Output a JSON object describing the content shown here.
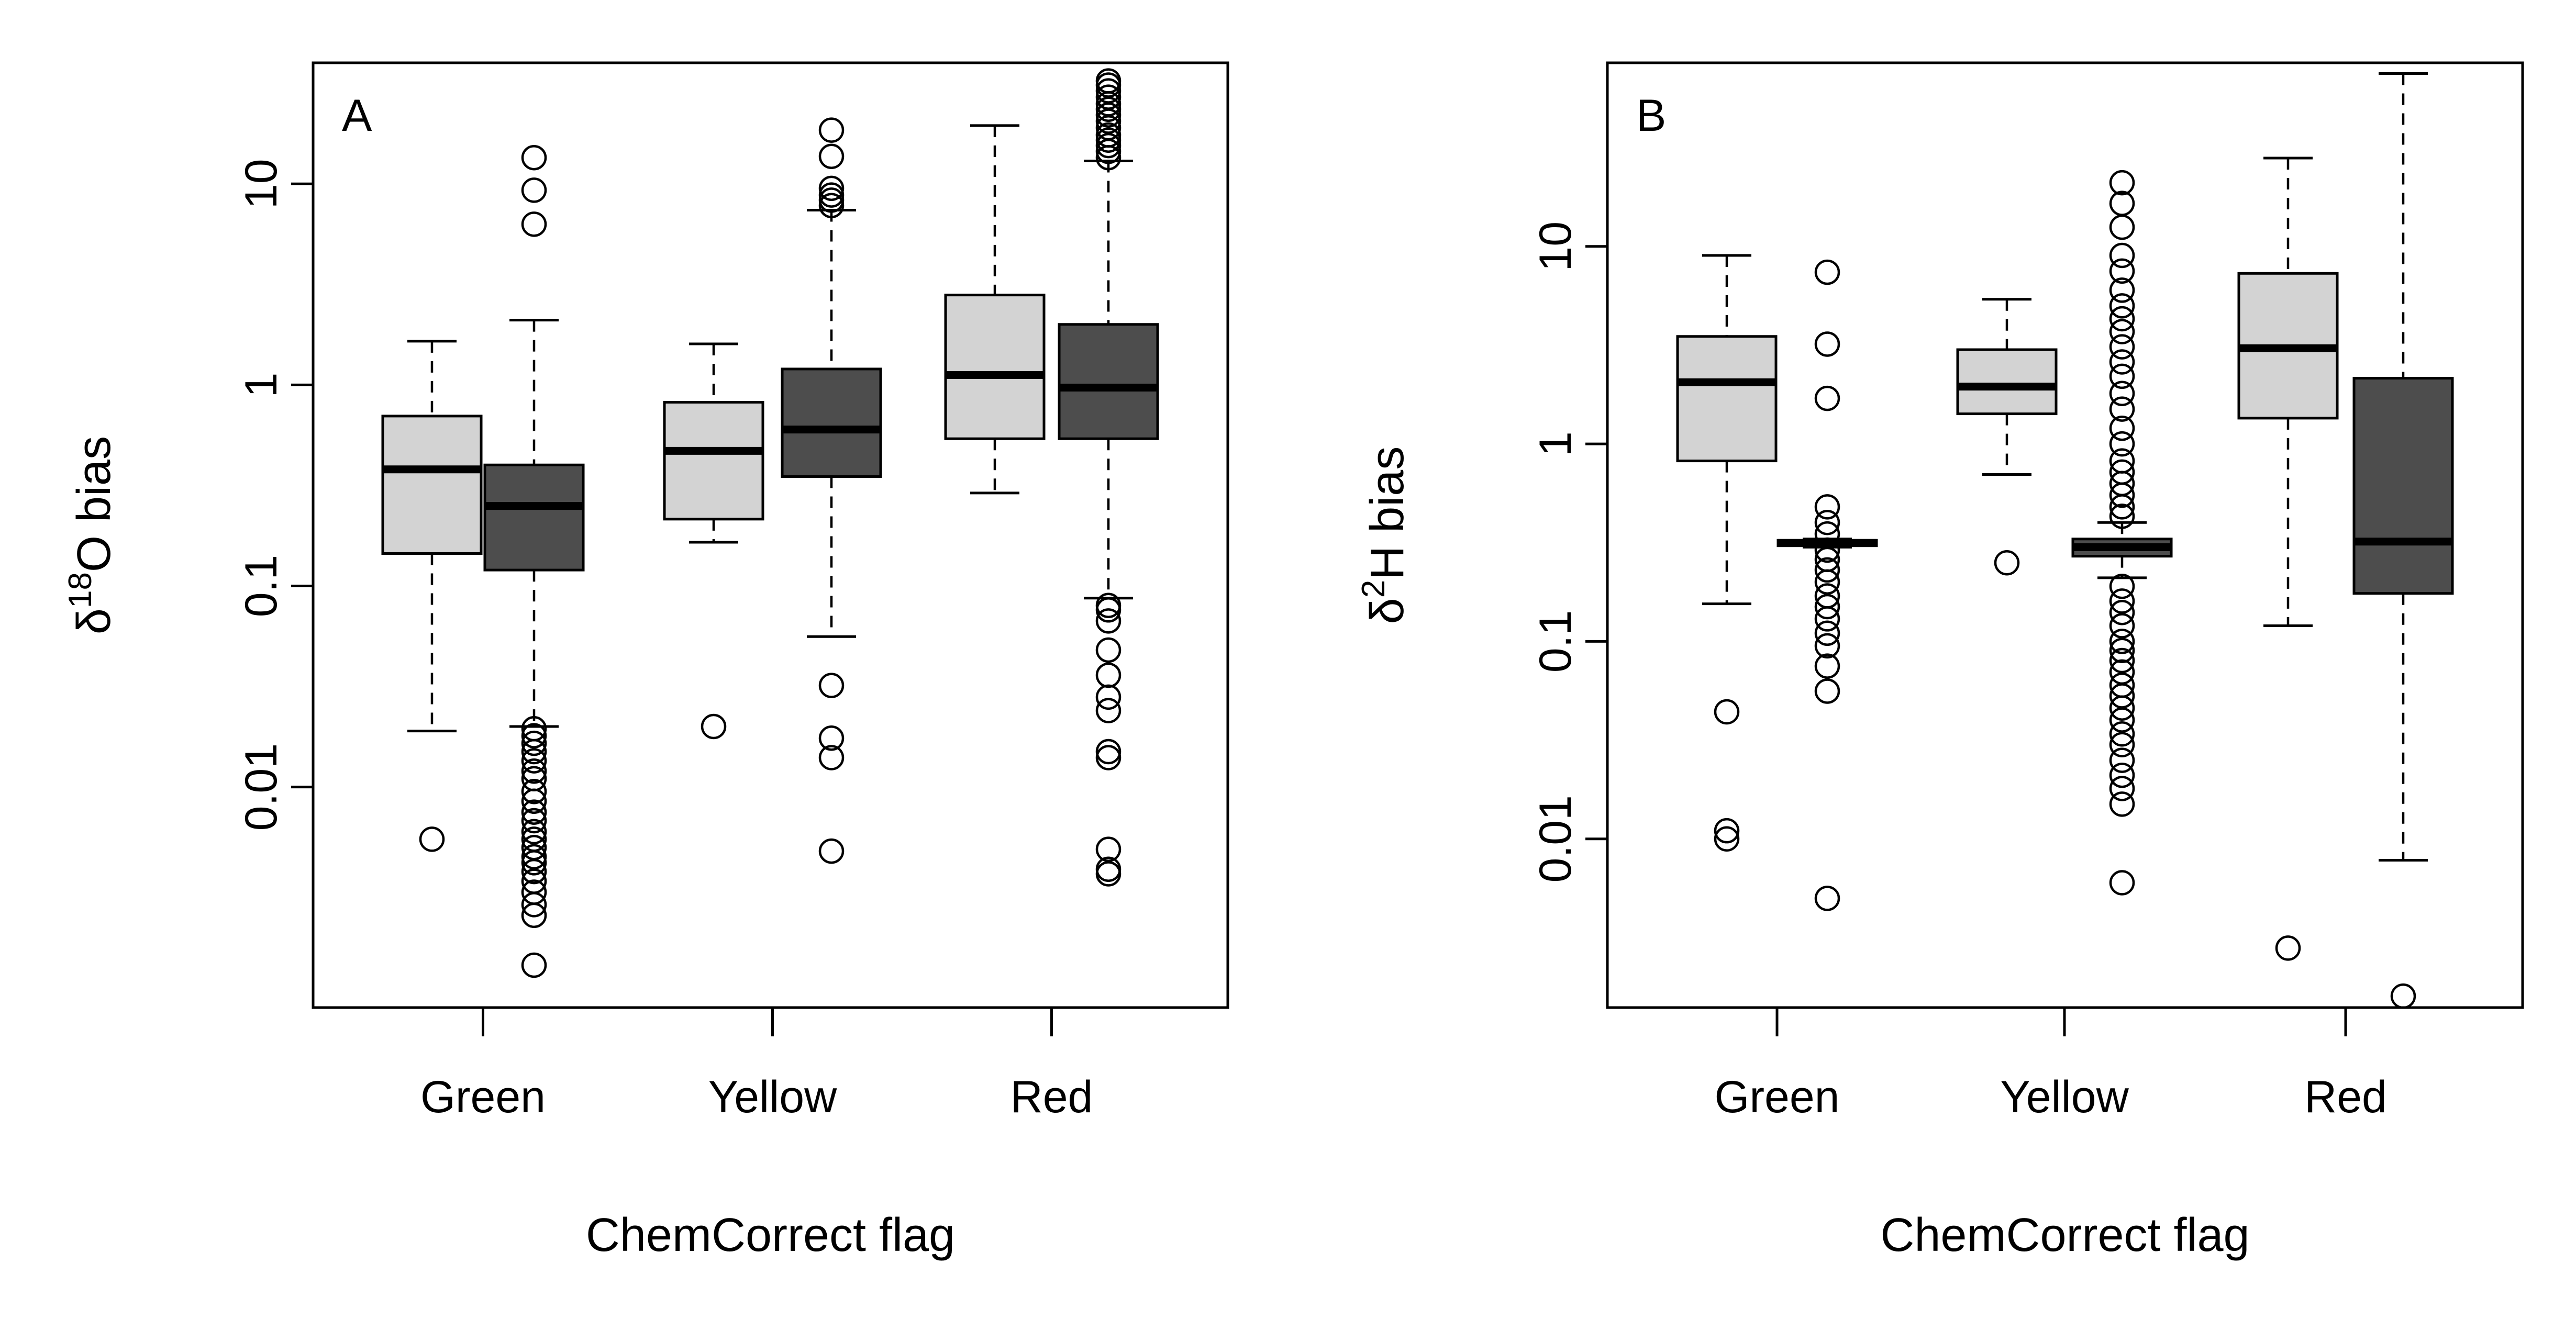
{
  "figure": {
    "colors": {
      "light_box": "#d3d3d3",
      "dark_box": "#4d4d4d",
      "ink": "#000000"
    }
  },
  "chart_data": [
    {
      "type": "boxplot",
      "panel_letter": "A",
      "xlabel": "ChemCorrect flag",
      "ylabel": {
        "greek": "δ",
        "sup": "18",
        "rest": "O bias"
      },
      "yscale": "log",
      "ylim": [
        0.0008,
        40
      ],
      "yticks": [
        0.01,
        0.1,
        1,
        10
      ],
      "ytick_labels": [
        "0.01",
        "0.1",
        "1",
        "10"
      ],
      "categories": [
        "Green",
        "Yellow",
        "Red"
      ],
      "series_colors": [
        "#d3d3d3",
        "#4d4d4d"
      ],
      "groups": [
        [
          {
            "lw": 0.019,
            "q1": 0.145,
            "med": 0.38,
            "q3": 0.7,
            "uw": 1.65,
            "outliers": [
              0.0055
            ]
          },
          {
            "lw": 0.02,
            "q1": 0.12,
            "med": 0.25,
            "q3": 0.4,
            "uw": 2.1,
            "outliers": [
              0.0013,
              0.0023,
              0.0026,
              0.003,
              0.0034,
              0.0038,
              0.0042,
              0.0045,
              0.005,
              0.0055,
              0.006,
              0.0068,
              0.0075,
              0.0085,
              0.0095,
              0.011,
              0.012,
              0.0135,
              0.015,
              0.0165,
              0.018,
              0.0195,
              6.3,
              9.3,
              13.5
            ]
          }
        ],
        [
          {
            "lw": 0.165,
            "q1": 0.215,
            "med": 0.47,
            "q3": 0.82,
            "uw": 1.6,
            "outliers": [
              0.02
            ]
          },
          {
            "lw": 0.056,
            "q1": 0.35,
            "med": 0.6,
            "q3": 1.2,
            "uw": 7.4,
            "outliers": [
              0.0048,
              0.014,
              0.0175,
              0.032,
              7.8,
              8.3,
              8.8,
              9.5,
              13.7,
              18.5
            ]
          }
        ],
        [
          {
            "lw": 0.29,
            "q1": 0.54,
            "med": 1.12,
            "q3": 2.8,
            "uw": 19.5,
            "outliers": []
          },
          {
            "lw": 0.087,
            "q1": 0.54,
            "med": 0.97,
            "q3": 2.0,
            "uw": 13.0,
            "outliers": [
              0.0037,
              0.0039,
              0.0049,
              0.014,
              0.015,
              0.024,
              0.028,
              0.036,
              0.048,
              0.067,
              0.076,
              0.08,
              13.5,
              14.5,
              15.5,
              16.5,
              17.5,
              19.0,
              20.5,
              22.0,
              23.5,
              25.0,
              27.0,
              29.0,
              31.0,
              32.5
            ]
          }
        ]
      ]
    },
    {
      "type": "boxplot",
      "panel_letter": "B",
      "xlabel": "ChemCorrect flag",
      "ylabel": {
        "greek": "δ",
        "sup": "2",
        "rest": "H bias"
      },
      "yscale": "log",
      "ylim": [
        0.0014,
        85
      ],
      "yticks": [
        0.01,
        0.1,
        1,
        10
      ],
      "ytick_labels": [
        "0.01",
        "0.1",
        "1",
        "10"
      ],
      "categories": [
        "Green",
        "Yellow",
        "Red"
      ],
      "series_colors": [
        "#d3d3d3",
        "#4d4d4d"
      ],
      "groups": [
        [
          {
            "lw": 0.155,
            "q1": 0.82,
            "med": 2.05,
            "q3": 3.5,
            "uw": 9.0,
            "outliers": [
              0.01,
              0.011,
              0.044
            ]
          },
          {
            "lw": 0.3,
            "q1": 0.305,
            "med": 0.315,
            "q3": 0.325,
            "uw": 0.33,
            "outliers": [
              0.005,
              0.056,
              0.075,
              0.095,
              0.11,
              0.13,
              0.15,
              0.17,
              0.2,
              0.23,
              0.26,
              0.29,
              0.35,
              0.4,
              0.48,
              1.7,
              3.2,
              7.4
            ]
          }
        ],
        [
          {
            "lw": 0.7,
            "q1": 1.42,
            "med": 1.95,
            "q3": 3.0,
            "uw": 5.4,
            "outliers": [
              0.25
            ]
          },
          {
            "lw": 0.21,
            "q1": 0.27,
            "med": 0.3,
            "q3": 0.33,
            "uw": 0.4,
            "outliers": [
              0.006,
              0.015,
              0.018,
              0.021,
              0.025,
              0.03,
              0.034,
              0.04,
              0.046,
              0.053,
              0.06,
              0.07,
              0.08,
              0.09,
              0.1,
              0.12,
              0.14,
              0.16,
              0.19,
              0.43,
              0.48,
              0.55,
              0.63,
              0.72,
              0.82,
              1.0,
              1.2,
              1.5,
              1.8,
              2.2,
              2.6,
              3.1,
              3.7,
              4.3,
              5.0,
              6.0,
              7.5,
              9.0,
              12.5,
              16.5,
              21.0
            ]
          }
        ],
        [
          {
            "lw": 0.12,
            "q1": 1.35,
            "med": 3.05,
            "q3": 7.3,
            "uw": 28.0,
            "outliers": [
              0.0028
            ]
          },
          {
            "lw": 0.0078,
            "q1": 0.175,
            "med": 0.32,
            "q3": 2.15,
            "uw": 75.0,
            "outliers": [
              0.0016
            ]
          }
        ]
      ]
    }
  ]
}
